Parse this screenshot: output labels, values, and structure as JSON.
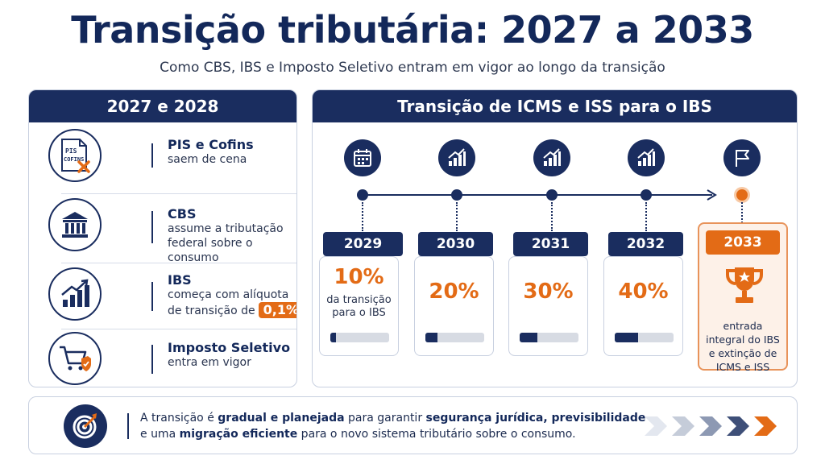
{
  "title": "Transição tributária: 2027 a 2033",
  "subtitle": "Como CBS, IBS e Imposto Seletivo entram em vigor ao longo da transição",
  "left_panel": {
    "heading": "2027 e 2028",
    "items": [
      {
        "icon": "pis-cofins-doc-icon",
        "icon_text_1": "PIS",
        "icon_text_2": "COFINS",
        "title": "PIS e Cofins",
        "desc": "saem de cena"
      },
      {
        "icon": "government-building-icon",
        "title": "CBS",
        "desc": "assume a tributação federal sobre o consumo"
      },
      {
        "icon": "growth-chart-icon",
        "title": "IBS",
        "desc": "começa com alíquota de transição de",
        "badge": "0,1%"
      },
      {
        "icon": "shopping-cart-icon",
        "title": "Imposto Seletivo",
        "desc": "entra em vigor"
      }
    ]
  },
  "right_panel": {
    "heading": "Transição de ICMS e ISS para o IBS",
    "years": [
      {
        "year": "2029",
        "percent": "10%",
        "note": "da transição para o IBS",
        "progress": 0.1,
        "icon": "calendar-icon"
      },
      {
        "year": "2030",
        "percent": "20%",
        "progress": 0.2,
        "icon": "growth-chart-icon"
      },
      {
        "year": "2031",
        "percent": "30%",
        "progress": 0.3,
        "icon": "growth-chart-icon"
      },
      {
        "year": "2032",
        "percent": "40%",
        "progress": 0.4,
        "icon": "growth-chart-icon"
      }
    ],
    "final": {
      "year": "2033",
      "note": "entrada integral do IBS e extinção de ICMS e ISS",
      "icon": "trophy-icon",
      "milestone_icon": "flag-icon"
    }
  },
  "banner": {
    "icon": "target-icon",
    "t1": "A transição é ",
    "b1": "gradual e planejada",
    "t2": " para garantir ",
    "b2": "segurança jurídica, previsibilidade",
    "t3": " e uma ",
    "b3": "migração eficiente",
    "t4": " para o novo sistema tributário sobre o consumo."
  },
  "colors": {
    "navy": "#1a2d5f",
    "orange": "#e36b16"
  }
}
